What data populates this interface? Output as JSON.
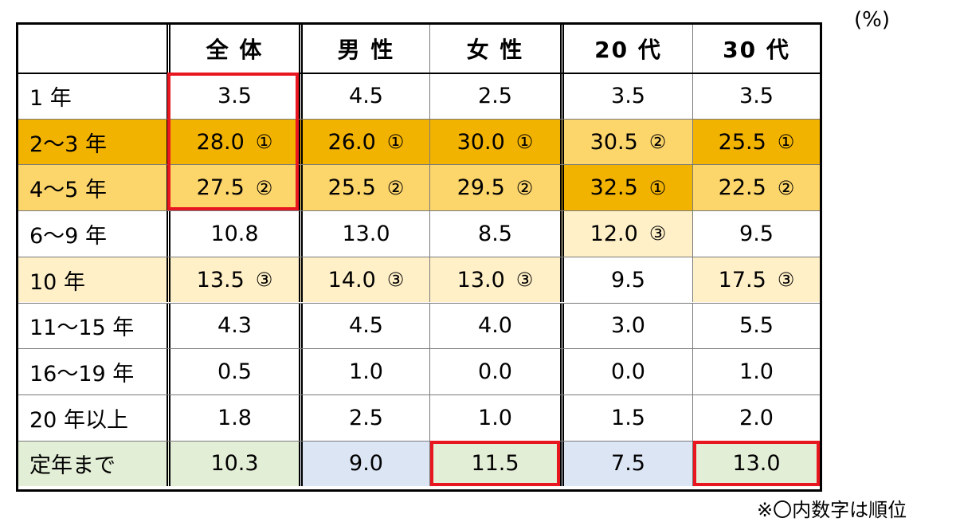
{
  "unit_label": "(%)",
  "footnote": "※〇内数字は順位",
  "colors": {
    "rank1": "#f2b200",
    "rank2": "#fcd56b",
    "rank3": "#fff0c8",
    "teiNen": "#e3eed6",
    "blue": "#dce5f4",
    "highlight": "#e8161f"
  },
  "chart_data": {
    "type": "table",
    "columns": [
      "全 体",
      "男 性",
      "女 性",
      "20 代",
      "30 代"
    ],
    "rows": [
      {
        "label": "1 年",
        "values": [
          "3.5",
          "4.5",
          "2.5",
          "3.5",
          "3.5"
        ],
        "ranks": [
          "",
          "",
          "",
          "",
          ""
        ]
      },
      {
        "label": "2～3 年",
        "values": [
          "28.0",
          "26.0",
          "30.0",
          "30.5",
          "25.5"
        ],
        "ranks": [
          "①",
          "①",
          "①",
          "②",
          "①"
        ]
      },
      {
        "label": "4～5 年",
        "values": [
          "27.5",
          "25.5",
          "29.5",
          "32.5",
          "22.5"
        ],
        "ranks": [
          "②",
          "②",
          "②",
          "①",
          "②"
        ]
      },
      {
        "label": "6～9 年",
        "values": [
          "10.8",
          "13.0",
          "8.5",
          "12.0",
          "9.5"
        ],
        "ranks": [
          "",
          "",
          "",
          "③",
          ""
        ]
      },
      {
        "label": "10 年",
        "values": [
          "13.5",
          "14.0",
          "13.0",
          "9.5",
          "17.5"
        ],
        "ranks": [
          "③",
          "③",
          "③",
          "",
          "③"
        ]
      },
      {
        "label": "11～15 年",
        "values": [
          "4.3",
          "4.5",
          "4.0",
          "3.0",
          "5.5"
        ],
        "ranks": [
          "",
          "",
          "",
          "",
          ""
        ]
      },
      {
        "label": "16～19 年",
        "values": [
          "0.5",
          "1.0",
          "0.0",
          "0.0",
          "1.0"
        ],
        "ranks": [
          "",
          "",
          "",
          "",
          ""
        ]
      },
      {
        "label": "20 年以上",
        "values": [
          "1.8",
          "2.5",
          "1.0",
          "1.5",
          "2.0"
        ],
        "ranks": [
          "",
          "",
          "",
          "",
          ""
        ]
      },
      {
        "label": "定年まで",
        "values": [
          "10.3",
          "9.0",
          "11.5",
          "7.5",
          "13.0"
        ],
        "ranks": [
          "",
          "",
          "",
          "",
          ""
        ]
      }
    ],
    "cell_fill": [
      [
        "none",
        "none",
        "none",
        "none",
        "none",
        "none"
      ],
      [
        "rank1",
        "rank1",
        "rank1",
        "rank1",
        "rank2",
        "rank1"
      ],
      [
        "rank2",
        "rank2",
        "rank2",
        "rank2",
        "rank1",
        "rank2"
      ],
      [
        "none",
        "none",
        "none",
        "none",
        "rank3",
        "none"
      ],
      [
        "rank3",
        "rank3",
        "rank3",
        "rank3",
        "none",
        "rank3"
      ],
      [
        "none",
        "none",
        "none",
        "none",
        "none",
        "none"
      ],
      [
        "none",
        "none",
        "none",
        "none",
        "none",
        "none"
      ],
      [
        "none",
        "none",
        "none",
        "none",
        "none",
        "none"
      ],
      [
        "teiNen",
        "teiNen",
        "blue",
        "teiNen",
        "blue",
        "teiNen"
      ]
    ],
    "highlighted_cells": [
      {
        "column": "全 体",
        "rows": [
          "1 年",
          "2～3 年",
          "4～5 年"
        ]
      },
      {
        "column": "女 性",
        "rows": [
          "定年まで"
        ]
      },
      {
        "column": "30 代",
        "rows": [
          "定年まで"
        ]
      }
    ]
  }
}
